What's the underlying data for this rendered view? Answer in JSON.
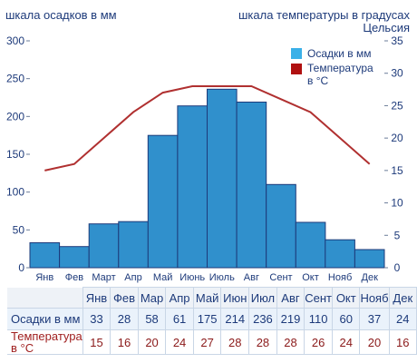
{
  "labels": {
    "left_axis": "шкала осадков в мм",
    "right_axis": "шкала температуры в градусах Цельсия"
  },
  "legend": {
    "precip": "Осадки в мм",
    "temp": "Температура в °C"
  },
  "colors": {
    "bar_fill": "#3090cc",
    "bar_stroke": "#1d3a7a",
    "line": "#b03030",
    "axis_text": "#1d3a7a",
    "temp_text": "#8b1a1a",
    "legend_precip": "#3ab0e8",
    "legend_temp": "#b01010"
  },
  "chart_data": {
    "type": "bar",
    "categories": [
      "Янв",
      "Фев",
      "Март",
      "Апр",
      "Май",
      "Июнь",
      "Июль",
      "Авг",
      "Сент",
      "Окт",
      "Нояб",
      "Дек"
    ],
    "series": [
      {
        "name": "Осадки в мм",
        "type": "bar",
        "axis": "left",
        "values": [
          33,
          28,
          58,
          61,
          175,
          214,
          236,
          219,
          110,
          60,
          37,
          24
        ]
      },
      {
        "name": "Температура в °C",
        "type": "line",
        "axis": "right",
        "values": [
          15,
          16,
          20,
          24,
          27,
          28,
          28,
          28,
          26,
          24,
          20,
          16
        ]
      }
    ],
    "ylabel": "шкала осадков в мм",
    "ylabel_right": "шкала температуры в градусах Цельсия",
    "ylim": [
      0,
      300
    ],
    "ylim_right": [
      0,
      35
    ],
    "yticks": [
      0,
      50,
      100,
      150,
      200,
      250,
      300
    ],
    "yticks_right": [
      0,
      5,
      10,
      15,
      20,
      25,
      30,
      35
    ],
    "grid": false,
    "legend_position": "top-right"
  },
  "table": {
    "months": [
      "Янв",
      "Фев",
      "Мар",
      "Апр",
      "Май",
      "Июн",
      "Июл",
      "Авг",
      "Сент",
      "Окт",
      "Нояб",
      "Дек"
    ],
    "precip_label": "Осадки в мм",
    "temp_label": "Температура в °C",
    "precip": [
      "33",
      "28",
      "58",
      "61",
      "175",
      "214",
      "236",
      "219",
      "110",
      "60",
      "37",
      "24"
    ],
    "temp": [
      "15",
      "16",
      "20",
      "24",
      "27",
      "28",
      "28",
      "28",
      "26",
      "24",
      "20",
      "16"
    ]
  }
}
